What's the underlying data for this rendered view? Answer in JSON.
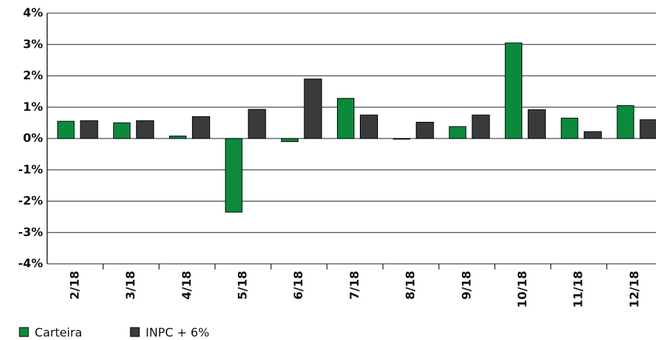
{
  "chart_data": {
    "type": "bar",
    "categories": [
      "2/18",
      "3/18",
      "4/18",
      "5/18",
      "6/18",
      "7/18",
      "8/18",
      "9/18",
      "10/18",
      "11/18",
      "12/18"
    ],
    "series": [
      {
        "name": "Carteira",
        "color": "#0b8a3c",
        "values": [
          0.55,
          0.5,
          0.08,
          -2.35,
          -0.1,
          1.28,
          -0.02,
          0.38,
          3.05,
          0.65,
          1.05
        ]
      },
      {
        "name": "INPC + 6%",
        "color": "#3a3a3a",
        "values": [
          0.57,
          0.57,
          0.7,
          0.93,
          1.9,
          0.75,
          0.52,
          0.75,
          0.92,
          0.22,
          0.6
        ]
      }
    ],
    "ylim": [
      -4,
      4
    ],
    "yticks": [
      {
        "value": -4,
        "label": "-4%"
      },
      {
        "value": -3,
        "label": "-3%"
      },
      {
        "value": -2,
        "label": "-2%"
      },
      {
        "value": -1,
        "label": "-1%"
      },
      {
        "value": 0,
        "label": "0%"
      },
      {
        "value": 1,
        "label": "1%"
      },
      {
        "value": 2,
        "label": "2%"
      },
      {
        "value": 3,
        "label": "3%"
      },
      {
        "value": 4,
        "label": "4%"
      }
    ],
    "grid": true
  }
}
